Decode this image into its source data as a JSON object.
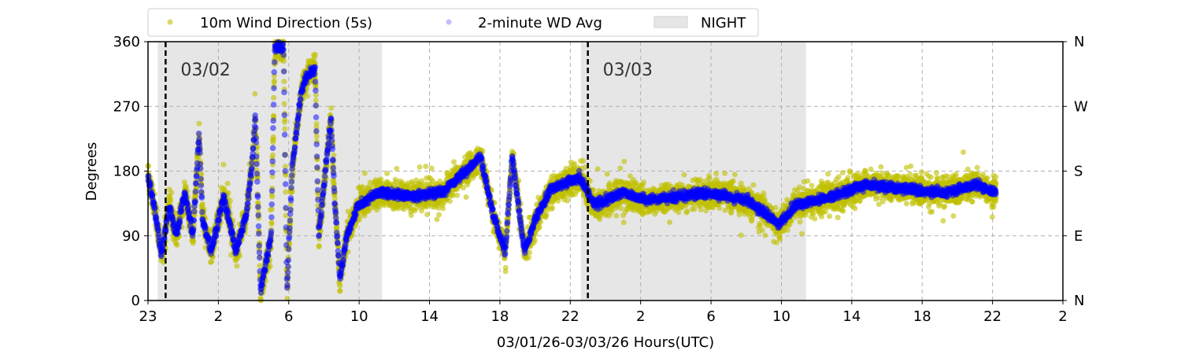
{
  "chart_data": {
    "type": "scatter",
    "title": "",
    "xlabel": "03/01/26-03/03/26  Hours(UTC)",
    "ylabel": "Degrees",
    "ylim": [
      0,
      360
    ],
    "xlim_hours_from_start": [
      0,
      52
    ],
    "y_ticks": [
      0,
      90,
      180,
      270,
      360
    ],
    "y_tick_labels": [
      "0",
      "90",
      "180",
      "270",
      "360"
    ],
    "right_tick_labels": [
      "N",
      "E",
      "S",
      "W",
      "N"
    ],
    "x_ticks_hours": [
      0,
      4,
      8,
      12,
      16,
      20,
      24,
      28,
      32,
      36,
      40,
      44,
      48,
      52
    ],
    "x_tick_labels": [
      "23",
      "2",
      "6",
      "10",
      "14",
      "18",
      "22",
      "2",
      "6",
      "10",
      "14",
      "18",
      "22",
      "2"
    ],
    "grid": true,
    "legend_placement": "top (above plot)",
    "legend": [
      "10m Wind Direction (5s)",
      "2-minute WD Avg",
      "NIGHT"
    ],
    "colors": {
      "wd5s": "#bfbf00",
      "wdavg": "#0000ff",
      "night": "#e6e6e6",
      "grid": "#b0b0b0"
    },
    "night_periods_hours": [
      [
        0.55,
        13.3
      ],
      [
        24.6,
        37.4
      ]
    ],
    "day_markers": [
      {
        "hour": 1,
        "label": "03/02"
      },
      {
        "hour": 25,
        "label": "03/03"
      }
    ],
    "data_end_hour": 48.2,
    "wd5s_spread_deg": 28,
    "wdavg_keyframes": [
      [
        0,
        172
      ],
      [
        0.4,
        125
      ],
      [
        0.75,
        62
      ],
      [
        1.2,
        133
      ],
      [
        1.6,
        90
      ],
      [
        2.1,
        150
      ],
      [
        2.55,
        90
      ],
      [
        2.9,
        232
      ],
      [
        3.1,
        112
      ],
      [
        3.6,
        68
      ],
      [
        4.3,
        145
      ],
      [
        5.0,
        68
      ],
      [
        5.6,
        122
      ],
      [
        5.9,
        188
      ],
      [
        6.1,
        254
      ],
      [
        6.4,
        13
      ],
      [
        7.0,
        90
      ],
      [
        7.2,
        352
      ],
      [
        7.7,
        352
      ],
      [
        7.9,
        13
      ],
      [
        8.2,
        188
      ],
      [
        8.45,
        237
      ],
      [
        8.7,
        287
      ],
      [
        9.05,
        314
      ],
      [
        9.5,
        320
      ],
      [
        9.7,
        90
      ],
      [
        10.4,
        254
      ],
      [
        10.6,
        145
      ],
      [
        10.9,
        30
      ],
      [
        11.3,
        90
      ],
      [
        11.95,
        133
      ],
      [
        13.1,
        150
      ],
      [
        14.9,
        145
      ],
      [
        16.7,
        150
      ],
      [
        18.9,
        199
      ],
      [
        19.6,
        122
      ],
      [
        20.3,
        68
      ],
      [
        20.7,
        199
      ],
      [
        21.4,
        68
      ],
      [
        22.0,
        112
      ],
      [
        22.9,
        155
      ],
      [
        24.5,
        172
      ],
      [
        25.4,
        133
      ],
      [
        27.0,
        150
      ],
      [
        28.3,
        139
      ],
      [
        31.9,
        150
      ],
      [
        34.1,
        139
      ],
      [
        35.9,
        106
      ],
      [
        36.8,
        133
      ],
      [
        39.0,
        145
      ],
      [
        40.8,
        161
      ],
      [
        45.3,
        150
      ],
      [
        47.1,
        161
      ],
      [
        48.2,
        150
      ]
    ]
  }
}
